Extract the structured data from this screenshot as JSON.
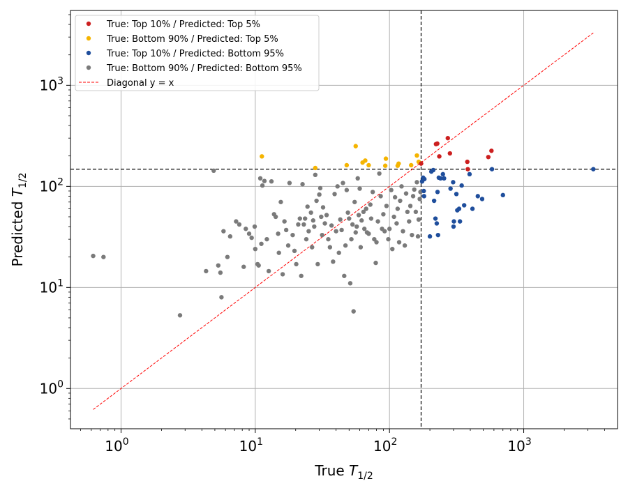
{
  "chart_data": {
    "type": "scatter",
    "title": "",
    "xlabel": "True",
    "ylabel": "Predicted",
    "axis_symbol": "T",
    "axis_subscript": "1/2",
    "xscale": "log",
    "yscale": "log",
    "xlim": [
      0.42,
      5000
    ],
    "ylim": [
      0.4,
      5500
    ],
    "x_ticks": [
      {
        "value": 1,
        "base": "10",
        "exp": "0"
      },
      {
        "value": 10,
        "base": "10",
        "exp": "1"
      },
      {
        "value": 100,
        "base": "10",
        "exp": "2"
      },
      {
        "value": 1000,
        "base": "10",
        "exp": "3"
      }
    ],
    "y_ticks": [
      {
        "value": 1,
        "base": "10",
        "exp": "0"
      },
      {
        "value": 10,
        "base": "10",
        "exp": "1"
      },
      {
        "value": 100,
        "base": "10",
        "exp": "2"
      },
      {
        "value": 1000,
        "base": "10",
        "exp": "3"
      }
    ],
    "grid": true,
    "legend_position": "top-left",
    "thresholds": {
      "x": 172,
      "y": 148
    },
    "diagonal": {
      "label": "Diagonal y = x",
      "color": "#ff0000",
      "from": 0.62,
      "to": 3300
    },
    "series": [
      {
        "name": "True: Top 10% / Predicted: Top 5%",
        "color": "#cc1f1f",
        "points": [
          [
            172,
            168
          ],
          [
            222,
            262
          ],
          [
            227,
            265
          ],
          [
            235,
            198
          ],
          [
            272,
            300
          ],
          [
            282,
            212
          ],
          [
            380,
            175
          ],
          [
            383,
            148
          ],
          [
            545,
            195
          ],
          [
            575,
            225
          ]
        ]
      },
      {
        "name": "True: Bottom 90% / Predicted: Top 5%",
        "color": "#f5b400",
        "points": [
          [
            11.2,
            198
          ],
          [
            28,
            152
          ],
          [
            48,
            162
          ],
          [
            56,
            250
          ],
          [
            63,
            172
          ],
          [
            66,
            180
          ],
          [
            70,
            162
          ],
          [
            93,
            160
          ],
          [
            94,
            188
          ],
          [
            115,
            160
          ],
          [
            117,
            168
          ],
          [
            145,
            162
          ],
          [
            160,
            202
          ],
          [
            165,
            175
          ]
        ]
      },
      {
        "name": "True: Top 10% / Predicted: Bottom 95%",
        "color": "#1f4e9c",
        "points": [
          [
            175,
            112
          ],
          [
            178,
            122
          ],
          [
            180,
            90
          ],
          [
            181,
            80
          ],
          [
            182,
            118
          ],
          [
            200,
            32
          ],
          [
            205,
            140
          ],
          [
            212,
            145
          ],
          [
            215,
            72
          ],
          [
            220,
            48
          ],
          [
            225,
            43
          ],
          [
            228,
            88
          ],
          [
            230,
            33
          ],
          [
            233,
            122
          ],
          [
            240,
            120
          ],
          [
            250,
            132
          ],
          [
            255,
            120
          ],
          [
            285,
            95
          ],
          [
            298,
            110
          ],
          [
            300,
            40
          ],
          [
            302,
            45
          ],
          [
            315,
            84
          ],
          [
            320,
            58
          ],
          [
            330,
            60
          ],
          [
            335,
            45
          ],
          [
            345,
            102
          ],
          [
            360,
            65
          ],
          [
            395,
            132
          ],
          [
            415,
            60
          ],
          [
            455,
            80
          ],
          [
            490,
            75
          ],
          [
            580,
            148
          ],
          [
            700,
            82
          ],
          [
            3300,
            148
          ]
        ]
      },
      {
        "name": "True: Bottom 90% / Predicted: Bottom 95%",
        "color": "#7a7a7a",
        "points": [
          [
            0.62,
            20.5
          ],
          [
            0.74,
            20
          ],
          [
            2.75,
            5.3
          ],
          [
            4.3,
            14.5
          ],
          [
            4.9,
            143
          ],
          [
            5.3,
            16.5
          ],
          [
            5.5,
            14
          ],
          [
            5.6,
            8
          ],
          [
            5.8,
            36
          ],
          [
            6.2,
            20
          ],
          [
            6.5,
            32
          ],
          [
            7.2,
            45
          ],
          [
            7.6,
            42
          ],
          [
            8.2,
            16
          ],
          [
            8.5,
            38
          ],
          [
            9,
            34
          ],
          [
            9.4,
            31
          ],
          [
            9.9,
            40
          ],
          [
            10,
            24
          ],
          [
            10.4,
            17
          ],
          [
            10.6,
            16.5
          ],
          [
            10.9,
            120
          ],
          [
            11.1,
            27
          ],
          [
            11.3,
            102
          ],
          [
            11.7,
            113
          ],
          [
            12.2,
            30
          ],
          [
            12.6,
            14.5
          ],
          [
            13.2,
            112
          ],
          [
            13.8,
            53
          ],
          [
            14.2,
            50
          ],
          [
            14.8,
            34
          ],
          [
            15,
            22
          ],
          [
            15.5,
            70
          ],
          [
            16,
            13.5
          ],
          [
            16.5,
            45
          ],
          [
            17,
            37
          ],
          [
            17.6,
            26
          ],
          [
            18,
            108
          ],
          [
            19,
            33
          ],
          [
            19.6,
            23
          ],
          [
            20.2,
            17
          ],
          [
            20.9,
            42
          ],
          [
            21.5,
            48
          ],
          [
            22,
            13
          ],
          [
            22.5,
            105
          ],
          [
            23,
            42
          ],
          [
            23.5,
            48
          ],
          [
            24,
            30
          ],
          [
            24.5,
            63
          ],
          [
            25,
            36
          ],
          [
            26,
            55
          ],
          [
            26.5,
            25
          ],
          [
            27,
            46
          ],
          [
            27.5,
            40
          ],
          [
            28,
            130
          ],
          [
            28.6,
            72
          ],
          [
            29.2,
            17
          ],
          [
            30,
            83
          ],
          [
            30.5,
            96
          ],
          [
            31,
            50
          ],
          [
            31.5,
            33
          ],
          [
            32,
            62
          ],
          [
            33,
            43
          ],
          [
            34,
            52
          ],
          [
            35,
            30
          ],
          [
            36,
            25
          ],
          [
            37,
            41
          ],
          [
            38,
            18
          ],
          [
            39,
            84
          ],
          [
            40,
            36
          ],
          [
            41,
            100
          ],
          [
            42,
            22
          ],
          [
            43,
            47
          ],
          [
            44,
            37
          ],
          [
            45,
            108
          ],
          [
            46,
            13
          ],
          [
            47,
            26
          ],
          [
            48,
            92
          ],
          [
            49,
            55
          ],
          [
            50,
            48
          ],
          [
            51,
            11
          ],
          [
            52,
            30
          ],
          [
            53,
            42
          ],
          [
            54,
            5.8
          ],
          [
            55,
            70
          ],
          [
            56,
            35
          ],
          [
            57,
            40
          ],
          [
            58,
            120
          ],
          [
            59,
            52
          ],
          [
            60,
            95
          ],
          [
            61,
            25
          ],
          [
            62,
            46
          ],
          [
            64,
            56
          ],
          [
            65,
            38
          ],
          [
            67,
            60
          ],
          [
            68,
            35
          ],
          [
            70,
            34
          ],
          [
            72,
            66
          ],
          [
            73,
            48
          ],
          [
            75,
            88
          ],
          [
            77,
            30
          ],
          [
            79,
            17.5
          ],
          [
            80,
            28
          ],
          [
            82,
            45
          ],
          [
            84,
            134
          ],
          [
            86,
            80
          ],
          [
            88,
            38
          ],
          [
            90,
            53
          ],
          [
            92,
            36
          ],
          [
            95,
            64
          ],
          [
            98,
            30
          ],
          [
            100,
            38
          ],
          [
            103,
            92
          ],
          [
            105,
            24
          ],
          [
            108,
            50
          ],
          [
            110,
            78
          ],
          [
            113,
            43
          ],
          [
            115,
            60
          ],
          [
            118,
            28
          ],
          [
            120,
            72
          ],
          [
            123,
            100
          ],
          [
            126,
            36
          ],
          [
            130,
            26
          ],
          [
            133,
            85
          ],
          [
            136,
            56
          ],
          [
            140,
            45
          ],
          [
            143,
            64
          ],
          [
            147,
            33
          ],
          [
            150,
            80
          ],
          [
            153,
            93
          ],
          [
            157,
            56
          ],
          [
            160,
            110
          ],
          [
            163,
            32
          ],
          [
            165,
            47
          ],
          [
            168,
            75
          ],
          [
            170,
            88
          ]
        ]
      }
    ]
  }
}
